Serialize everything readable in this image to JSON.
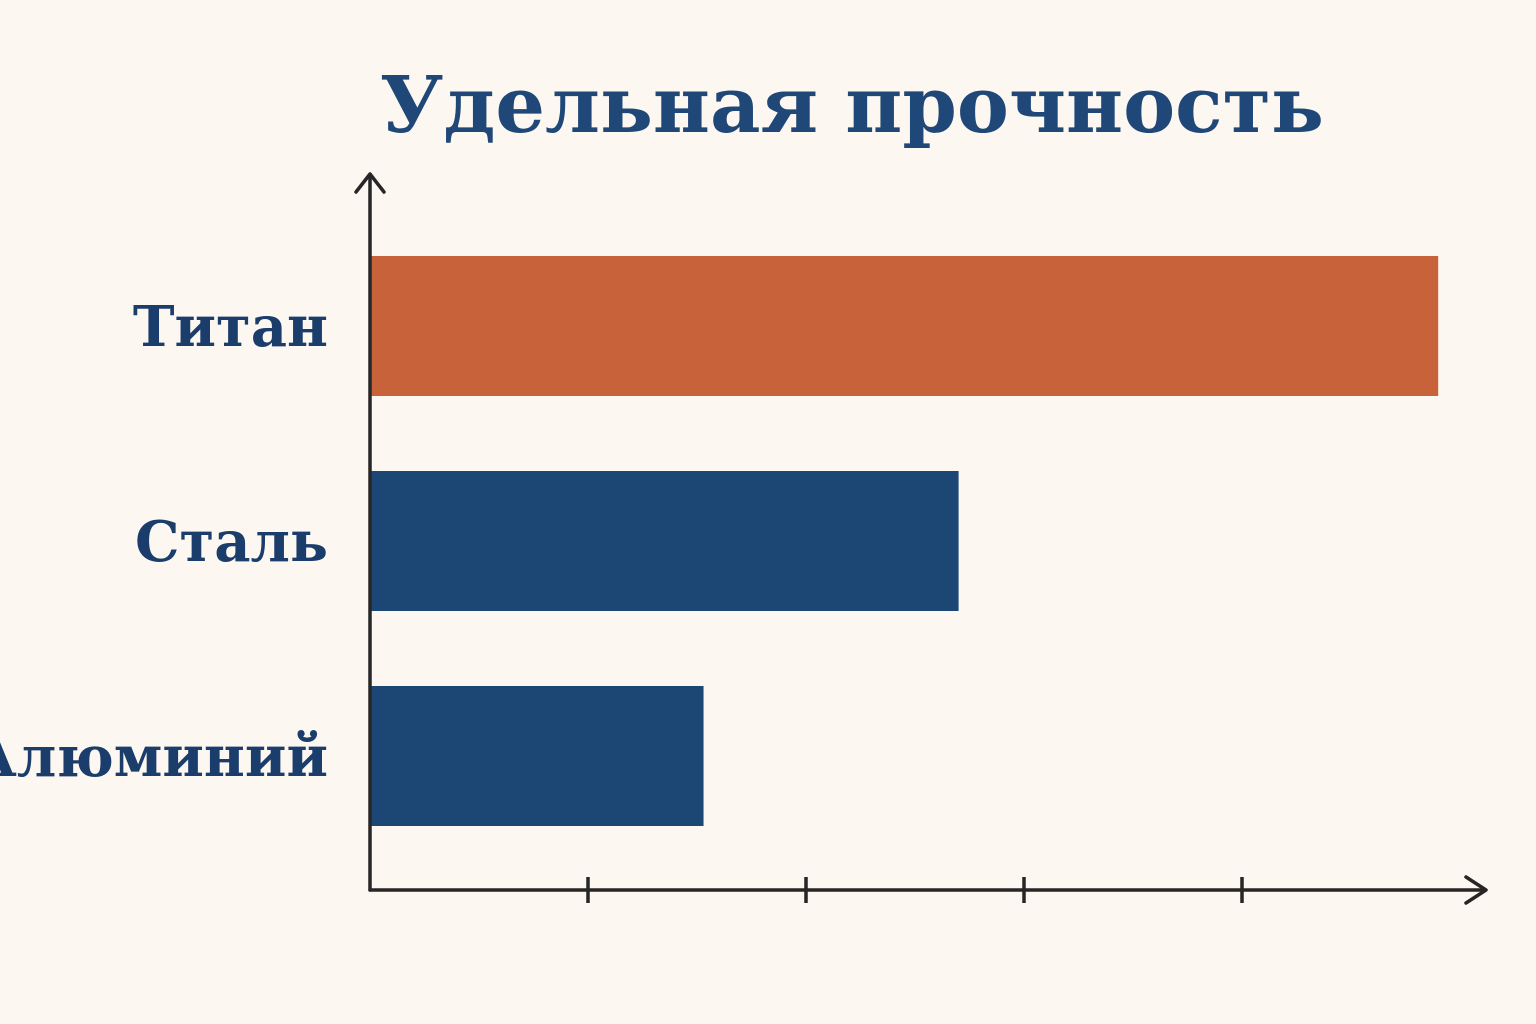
{
  "chart_data": {
    "type": "bar",
    "orientation": "horizontal",
    "title": "Удельная прочность",
    "xlabel": "",
    "ylabel": "",
    "categories": [
      "Титан",
      "Сталь",
      "Алюминий"
    ],
    "values": [
      4.9,
      2.7,
      1.53
    ],
    "colors": [
      "#c8623a",
      "#1c4674",
      "#1c4674"
    ],
    "xlim": [
      0,
      5
    ],
    "xticks": [
      1,
      2,
      3,
      4
    ],
    "tick_labels_shown": false,
    "grid": false,
    "legend": "none"
  }
}
